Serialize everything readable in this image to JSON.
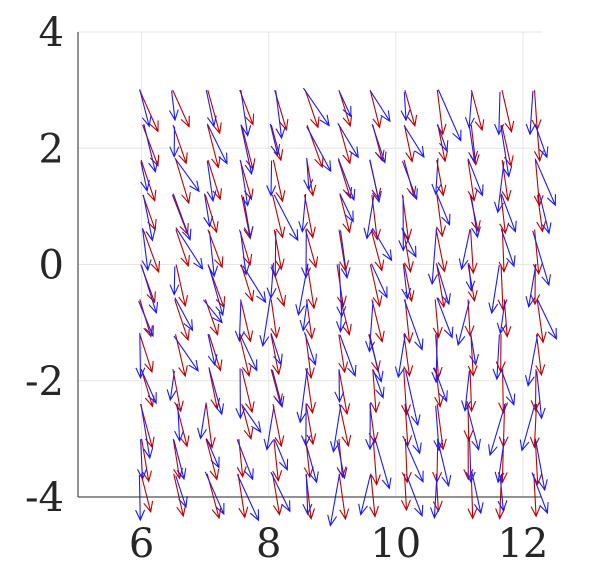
{
  "chart_data": {
    "type": "quiver",
    "title": "",
    "xlabel": "",
    "ylabel": "",
    "xlim": [
      5,
      12.3
    ],
    "ylim": [
      -4,
      4
    ],
    "xticks": [
      6,
      8,
      10,
      12
    ],
    "yticks": [
      -4,
      -2,
      0,
      2,
      4
    ],
    "xtick_labels": [
      "6",
      "8",
      "10",
      "12"
    ],
    "ytick_labels": [
      "-4",
      "-2",
      "0",
      "2",
      "4"
    ],
    "grid": true,
    "legend": "none",
    "series": [
      {
        "color": "#c00000",
        "description": "red arrows"
      },
      {
        "color": "#1a1aff",
        "description": "blue arrows"
      }
    ],
    "grid_x_start": 6.0,
    "grid_x_end": 12.2,
    "columns": 13,
    "grid_y_start": 3.0,
    "grid_y_end": -3.6,
    "rows": 12
  }
}
